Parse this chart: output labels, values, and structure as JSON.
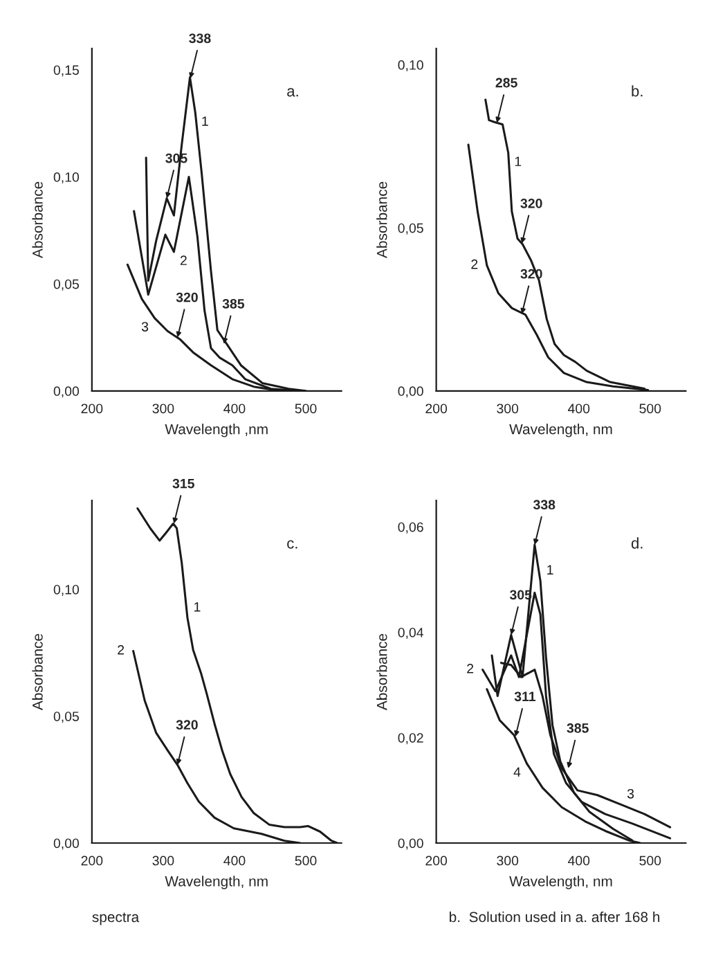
{
  "chart_data": [
    {
      "type": "line",
      "xlabel": "Wavelength ,nm",
      "ylabel": "Absorbance",
      "xlim": [
        200,
        550
      ],
      "ylim": [
        0,
        0.16
      ],
      "xticks": [
        200,
        300,
        400,
        500
      ],
      "yticks": [
        {
          "value": 0,
          "label": "0,00"
        },
        {
          "value": 0.05,
          "label": "0,05"
        },
        {
          "value": 0.1,
          "label": "0,10"
        },
        {
          "value": 0.15,
          "label": "0,15"
        }
      ],
      "series": [
        {
          "name": "1",
          "color": "#1a1a1a",
          "x": [
            276,
            279,
            290,
            305,
            315,
            326,
            337.5,
            345,
            354,
            367,
            376,
            391,
            409,
            439,
            476,
            500
          ],
          "values": [
            0.109,
            0.0515,
            0.07,
            0.09,
            0.082,
            0.115,
            0.1465,
            0.13,
            0.1016,
            0.056,
            0.0284,
            0.021,
            0.012,
            0.0037,
            0.001,
            0
          ]
        },
        {
          "name": "2",
          "color": "#1a1a1a",
          "x": [
            259,
            279,
            303,
            315,
            336,
            348,
            358,
            367,
            379,
            397,
            415,
            451,
            488
          ],
          "values": [
            0.084,
            0.045,
            0.073,
            0.065,
            0.1,
            0.072,
            0.0375,
            0.02,
            0.0156,
            0.012,
            0.0055,
            0.001,
            0
          ]
        },
        {
          "name": "3",
          "color": "#1a1a1a",
          "x": [
            250,
            270,
            288,
            306,
            324,
            342,
            367,
            397,
            427,
            464
          ],
          "values": [
            0.059,
            0.043,
            0.034,
            0.028,
            0.024,
            0.018,
            0.012,
            0.0055,
            0.002,
            0
          ]
        }
      ],
      "annotations": [
        "a.",
        {
          "text": "338",
          "x": 338,
          "y": 0.146
        },
        {
          "text": "305",
          "x": 305,
          "y": 0.09
        },
        {
          "text": "320",
          "x": 320,
          "y": 0.025
        },
        {
          "text": "385",
          "x": 385,
          "y": 0.022
        }
      ]
    },
    {
      "type": "line",
      "xlabel": "Wavelength, nm",
      "ylabel": "Absorbance",
      "xlim": [
        200,
        550
      ],
      "ylim": [
        0,
        0.105
      ],
      "xticks": [
        200,
        300,
        400,
        500
      ],
      "yticks": [
        {
          "value": 0,
          "label": "0,00"
        },
        {
          "value": 0.05,
          "label": "0,05"
        },
        {
          "value": 0.1,
          "label": "0,10"
        }
      ],
      "series": [
        {
          "name": "1",
          "color": "#1a1a1a",
          "x": [
            269,
            274,
            282,
            293,
            301,
            306,
            314,
            321,
            333,
            344,
            355,
            366,
            379,
            395,
            411,
            444,
            492
          ],
          "values": [
            0.0893,
            0.083,
            0.0824,
            0.0817,
            0.073,
            0.055,
            0.0467,
            0.045,
            0.04,
            0.034,
            0.022,
            0.0144,
            0.011,
            0.0089,
            0.0062,
            0.0027,
            0.0007
          ]
        },
        {
          "name": "2",
          "color": "#1a1a1a",
          "x": [
            245,
            258,
            271,
            287,
            306,
            325,
            341,
            357,
            379,
            411,
            448,
            497
          ],
          "values": [
            0.0755,
            0.055,
            0.0385,
            0.03,
            0.0254,
            0.0234,
            0.0172,
            0.0103,
            0.0055,
            0.0027,
            0.0014,
            0.0003
          ]
        }
      ],
      "annotations": [
        "b.",
        {
          "text": "285",
          "x": 285,
          "y": 0.0822
        },
        {
          "text": "320",
          "x": 320,
          "y": 0.0236
        },
        {
          "text": "320",
          "x": 320,
          "y": 0.0452
        }
      ]
    },
    {
      "type": "line",
      "xlabel": "Wavelength, nm",
      "ylabel": "Absorbance",
      "xlim": [
        200,
        550
      ],
      "ylim": [
        0,
        0.135
      ],
      "xticks": [
        200,
        300,
        400,
        500
      ],
      "yticks": [
        {
          "value": 0,
          "label": "0,00"
        },
        {
          "value": 0.05,
          "label": "0,05"
        },
        {
          "value": 0.1,
          "label": "0,10"
        }
      ],
      "series": [
        {
          "name": "1",
          "color": "#1a1a1a",
          "x": [
            264,
            282,
            295,
            304,
            314,
            319,
            326,
            334,
            342,
            353,
            361,
            372,
            383,
            394,
            410,
            427,
            449,
            470,
            492,
            503,
            520,
            536,
            544
          ],
          "values": [
            0.1319,
            0.124,
            0.1192,
            0.1223,
            0.1259,
            0.1241,
            0.1105,
            0.0888,
            0.0761,
            0.067,
            0.0589,
            0.047,
            0.0362,
            0.0272,
            0.0181,
            0.0118,
            0.0072,
            0.0063,
            0.0063,
            0.0067,
            0.0045,
            0.0009,
            0
          ]
        },
        {
          "name": "2",
          "color": "#1a1a1a",
          "x": [
            258,
            274,
            290,
            307,
            320,
            334,
            350,
            372,
            399,
            438,
            470,
            492
          ],
          "values": [
            0.0757,
            0.0562,
            0.0435,
            0.0362,
            0.0308,
            0.0236,
            0.0163,
            0.01,
            0.0058,
            0.0036,
            0.0009,
            0
          ]
        }
      ],
      "annotations": [
        "c.",
        {
          "text": "315",
          "x": 315,
          "y": 0.1259
        },
        {
          "text": "320",
          "x": 320,
          "y": 0.0308
        },
        "spectra"
      ]
    },
    {
      "type": "line",
      "xlabel": "Wavelength, nm",
      "ylabel": "Absorbance",
      "xlim": [
        200,
        550
      ],
      "ylim": [
        0,
        0.065
      ],
      "xticks": [
        200,
        300,
        400,
        500
      ],
      "yticks": [
        {
          "value": 0,
          "label": "0,00"
        },
        {
          "value": 0.02,
          "label": "0,02"
        },
        {
          "value": 0.04,
          "label": "0,04"
        },
        {
          "value": 0.06,
          "label": "0,06"
        }
      ],
      "series": [
        {
          "name": "1",
          "color": "#1a1a1a",
          "x": [
            278,
            286,
            305,
            321,
            338,
            346,
            354,
            363,
            374,
            393,
            415,
            448,
            475
          ],
          "values": [
            0.0356,
            0.0279,
            0.0395,
            0.0315,
            0.0566,
            0.0498,
            0.0352,
            0.0224,
            0.0155,
            0.0096,
            0.0059,
            0.0027,
            0.0005
          ]
        },
        {
          "name": "2",
          "color": "#1a1a1a",
          "x": [
            265,
            283,
            305,
            316,
            338,
            346,
            354,
            365,
            382,
            404,
            437,
            475,
            528
          ],
          "values": [
            0.0329,
            0.0288,
            0.0356,
            0.0315,
            0.0475,
            0.0434,
            0.0279,
            0.0169,
            0.0114,
            0.0078,
            0.0055,
            0.0037,
            0.0009
          ]
        },
        {
          "name": "3",
          "color": "#1a1a1a",
          "x": [
            291,
            305,
            319,
            338,
            349,
            360,
            376,
            398,
            426,
            459,
            492,
            528
          ],
          "values": [
            0.0342,
            0.0338,
            0.0315,
            0.0329,
            0.0279,
            0.0205,
            0.0142,
            0.01,
            0.0091,
            0.0073,
            0.0055,
            0.003
          ]
        },
        {
          "name": "4",
          "color": "#1a1a1a",
          "x": [
            271,
            289,
            309,
            327,
            349,
            376,
            409,
            437,
            470,
            486
          ],
          "values": [
            0.0292,
            0.0233,
            0.0205,
            0.0151,
            0.0105,
            0.0068,
            0.0041,
            0.0023,
            0.0005,
            0
          ]
        }
      ],
      "annotations": [
        "d.",
        {
          "text": "338",
          "x": 338,
          "y": 0.0566
        },
        {
          "text": "305",
          "x": 305,
          "y": 0.0395
        },
        {
          "text": "311",
          "x": 311,
          "y": 0.0202
        },
        {
          "text": "385",
          "x": 385,
          "y": 0.0142
        },
        "b.  Solution used in a. after 168 h"
      ]
    }
  ]
}
